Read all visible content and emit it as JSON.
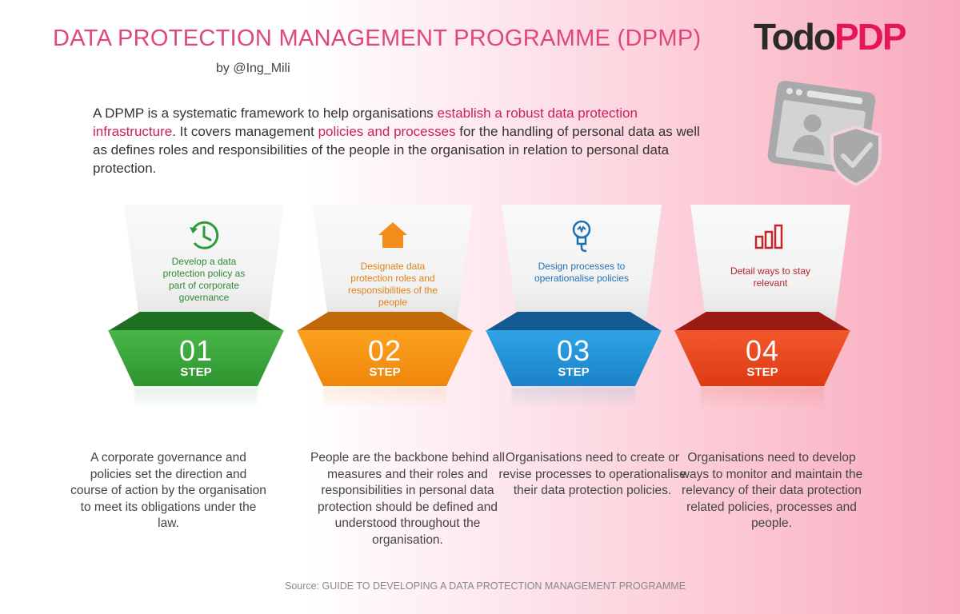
{
  "header": {
    "title": "DATA PROTECTION MANAGEMENT PROGRAMME (DPMP)",
    "byline": "by @Ing_Mili",
    "logo_part1": "Todo",
    "logo_part2": "PDP"
  },
  "intro": {
    "t1": "A DPMP is a systematic framework to help organisations ",
    "h1": "establish a robust data protection infrastructure",
    "t2": ". It covers management ",
    "h2": "policies and processes",
    "t3": " for the handling of personal data as well as defines roles and responsibilities of the people in the organisation in relation to personal data protection."
  },
  "decor_icon": "browser-user-shield-icon",
  "steps": [
    {
      "number": "01",
      "step_label": "STEP",
      "caption": "Develop a data protection policy as part of corporate governance",
      "icon": "clock-icon",
      "color": "#3aa53a",
      "dark": "#1f6f22",
      "description": "A corporate governance and policies set the direction and course of action by the organisation to meet its obligations under the law."
    },
    {
      "number": "02",
      "step_label": "STEP",
      "caption": "Designate data protection roles and responsibilities of the people",
      "icon": "house-icon",
      "color": "#f5900f",
      "dark": "#b85f05",
      "description": "People are the backbone behind all measures and their roles and responsibilities in personal data protection should be defined and understood throughout the organisation."
    },
    {
      "number": "03",
      "step_label": "STEP",
      "caption": "Design processes to operationalise policies",
      "icon": "lightbulb-icon",
      "color": "#1f8fd6",
      "dark": "#135a92",
      "description": "Organisations need to create or revise processes to operationalise their data protection policies."
    },
    {
      "number": "04",
      "step_label": "STEP",
      "caption": "Detail ways to stay relevant",
      "icon": "bar-chart-icon",
      "color": "#e8451a",
      "dark": "#9c1a14",
      "description": "Organisations need to develop ways to monitor and maintain the relevancy of their data protection related policies, processes and people."
    }
  ],
  "source": "Source:  GUIDE TO DEVELOPING A DATA PROTECTION MANAGEMENT PROGRAMME"
}
